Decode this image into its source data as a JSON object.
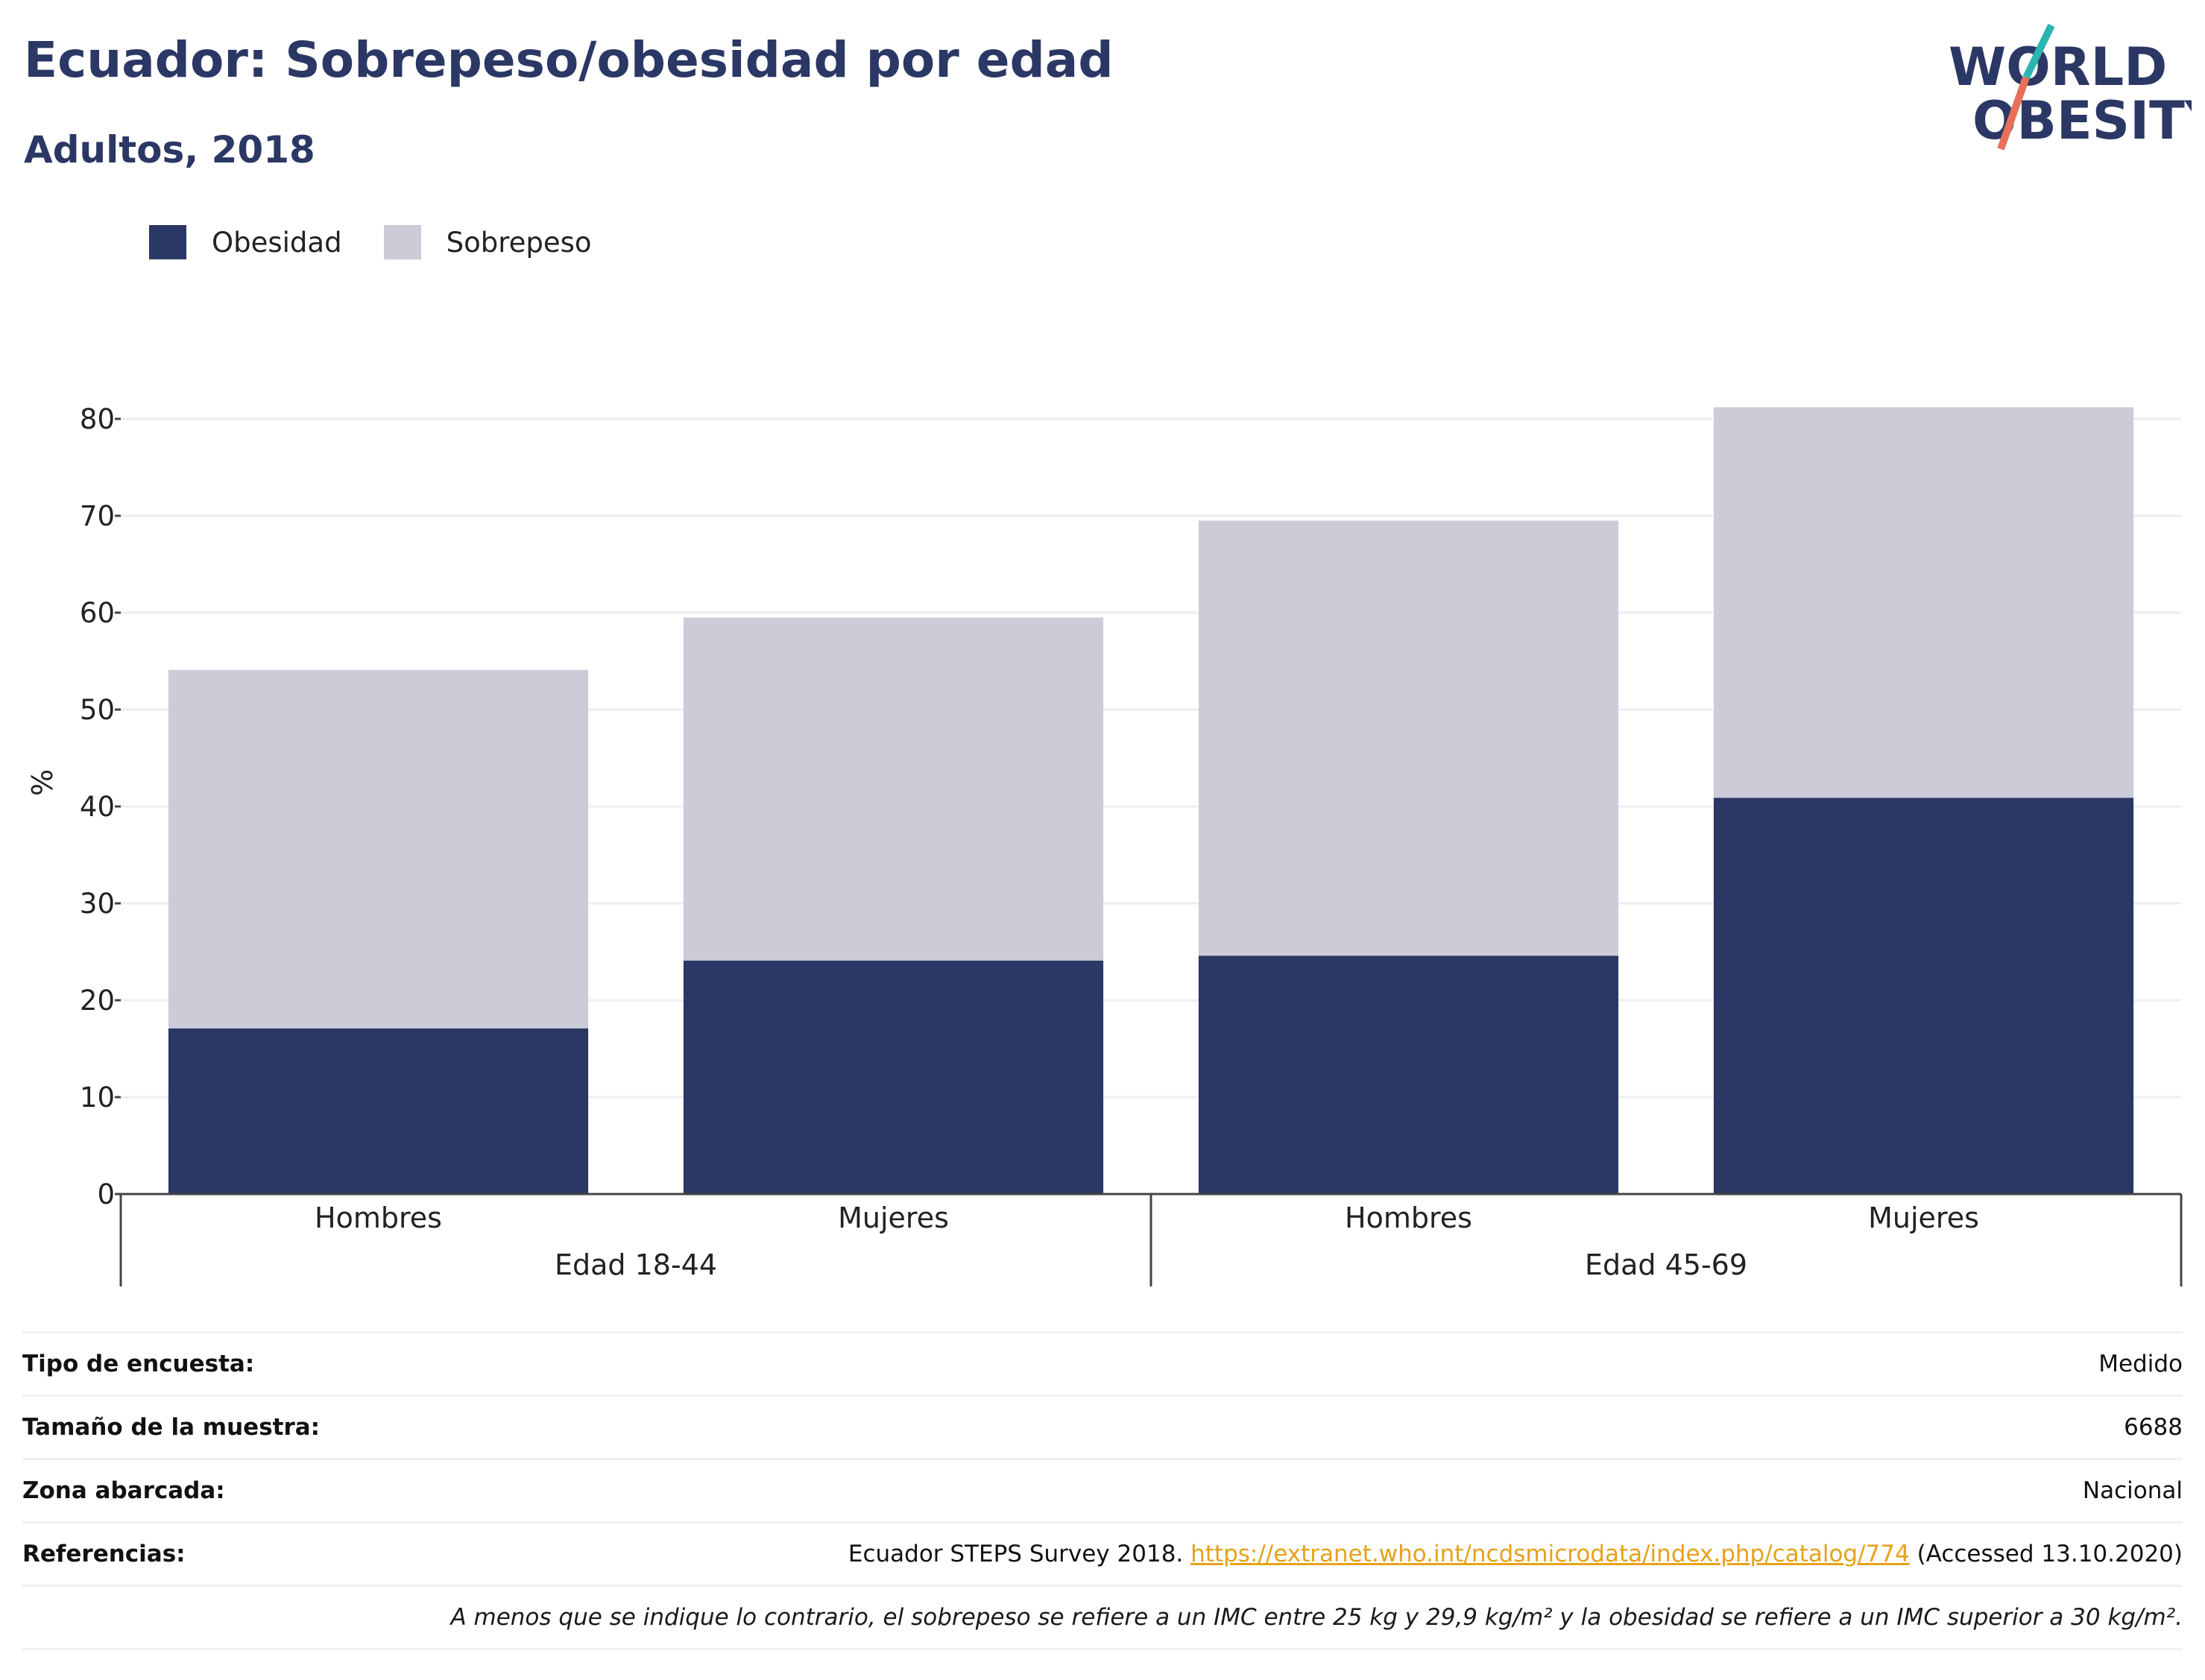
{
  "header": {
    "title": "Ecuador: Sobrepeso/obesidad por edad",
    "subtitle": "Adultos, 2018"
  },
  "logo": {
    "line1": "WORLD",
    "line2": "OBESITY",
    "icon": "world-obesity-logo"
  },
  "colors": {
    "obesity": "#2b3764",
    "overweight": "#cbccd8",
    "accent_teal": "#2bb6b0",
    "accent_coral": "#e8705a",
    "link": "#e6a21a"
  },
  "chart_data": {
    "type": "bar",
    "stacked": true,
    "ylabel": "%",
    "ylim": [
      0,
      82
    ],
    "yticks": [
      0,
      10,
      20,
      30,
      40,
      50,
      60,
      70,
      80
    ],
    "grid": true,
    "legend_position": "top-left",
    "categories": [
      "Hombres",
      "Mujeres",
      "Hombres",
      "Mujeres"
    ],
    "groups": [
      {
        "label": "Edad 18-44",
        "categories": [
          0,
          1
        ]
      },
      {
        "label": "Edad 45-69",
        "categories": [
          2,
          3
        ]
      }
    ],
    "series": [
      {
        "name": "Obesidad",
        "values": [
          17.1,
          24.1,
          24.6,
          40.9
        ]
      },
      {
        "name": "Sobrepeso",
        "values": [
          37.0,
          35.4,
          44.9,
          40.3
        ]
      }
    ]
  },
  "info": {
    "survey_type": {
      "label": "Tipo de encuesta:",
      "value": "Medido"
    },
    "sample_size": {
      "label": "Tamaño de la muestra:",
      "value": "6688"
    },
    "area": {
      "label": "Zona abarcada:",
      "value": "Nacional"
    },
    "references": {
      "label": "Referencias:",
      "text_before": "Ecuador STEPS Survey 2018. ",
      "link": "https://extranet.who.int/ncdsmicrodata/index.php/catalog/774",
      "text_after": " (Accessed 13.10.2020)"
    },
    "note": "A menos que se indique lo contrario, el sobrepeso se refiere a un IMC entre 25 kg y 29,9 kg/m² y la obesidad se refiere a un IMC superior a 30 kg/m²."
  }
}
